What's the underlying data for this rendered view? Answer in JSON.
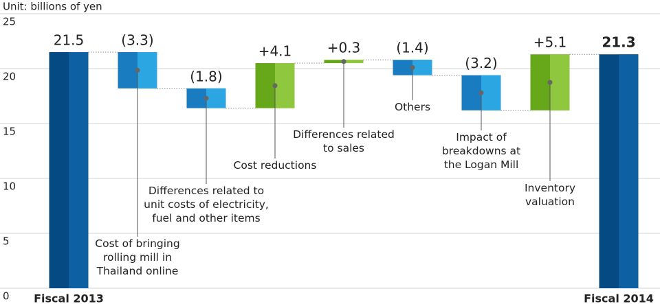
{
  "chart_data": {
    "type": "waterfall",
    "unit_label": "Unit: billions of yen",
    "categories": [
      "Fiscal 2013",
      "Cost of bringing\nrolling mill in\nThailand online",
      "Differences related to\nunit costs of electricity,\nfuel and other items",
      "Cost reductions",
      "Differences related\nto sales",
      "Others",
      "Impact of\nbreakdowns at\nthe Logan Mill",
      "Inventory\nvaluation",
      "Fiscal 2014"
    ],
    "values": [
      21.5,
      -3.3,
      -1.8,
      4.1,
      0.3,
      -1.4,
      -3.2,
      5.1,
      21.3
    ],
    "value_labels": [
      "21.5",
      "(3.3)",
      "(1.8)",
      "+4.1",
      "+0.3",
      "(1.4)",
      "(3.2)",
      "+5.1",
      "21.3"
    ],
    "totals": [
      0,
      8
    ],
    "colors": {
      "total": [
        "#064a83",
        "#0d60a1"
      ],
      "decrease": [
        "#1a7cc0",
        "#2ba6e2"
      ],
      "increase": [
        "#67a81b",
        "#8fc73e"
      ]
    },
    "ylim": [
      0,
      25
    ],
    "yticks": [
      0,
      5,
      10,
      15,
      20,
      25
    ],
    "grid": true
  }
}
